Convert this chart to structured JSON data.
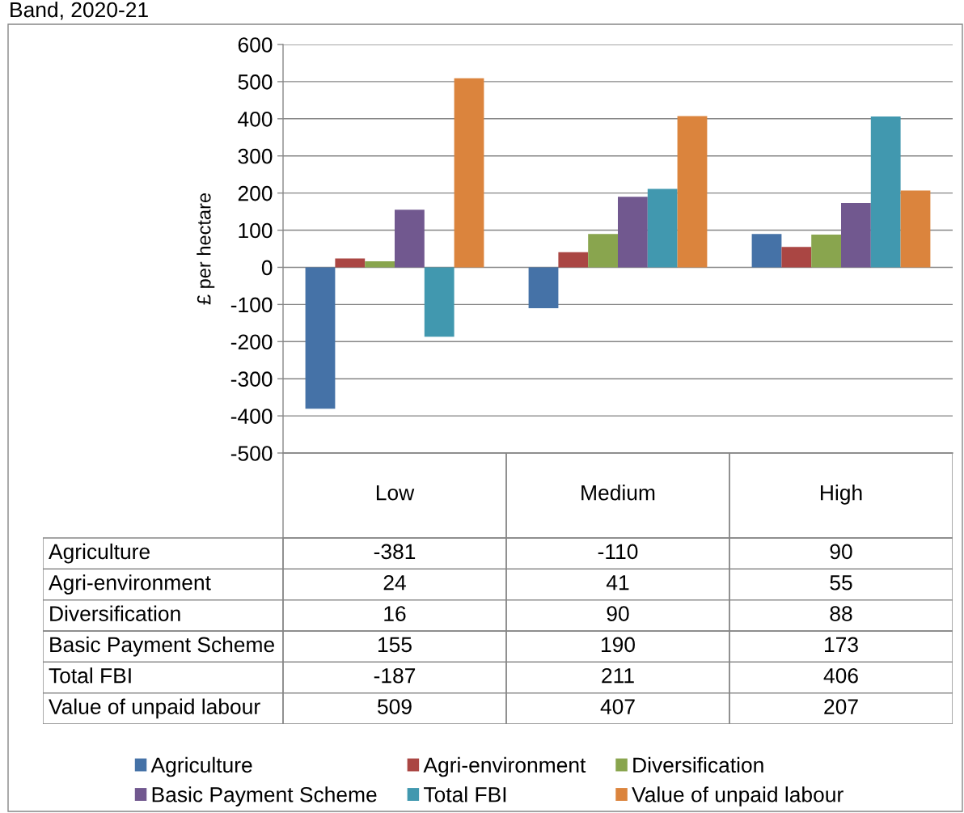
{
  "chart_data": {
    "type": "bar",
    "title": "Band, 2020-21",
    "ylabel": "£ per hectare",
    "categories": [
      "Low",
      "Medium",
      "High"
    ],
    "series": [
      {
        "name": "Agriculture",
        "color": "#4572a7",
        "values": [
          -381,
          -110,
          90
        ]
      },
      {
        "name": "Agri-environment",
        "color": "#aa4643",
        "values": [
          24,
          41,
          55
        ]
      },
      {
        "name": "Diversification",
        "color": "#89a54e",
        "values": [
          16,
          90,
          88
        ]
      },
      {
        "name": "Basic Payment Scheme",
        "color": "#71588f",
        "values": [
          155,
          190,
          173
        ]
      },
      {
        "name": "Total FBI",
        "color": "#4198af",
        "values": [
          -187,
          211,
          406
        ]
      },
      {
        "name": "Value of unpaid labour",
        "color": "#db843d",
        "values": [
          509,
          407,
          207
        ]
      }
    ],
    "ylim": [
      -500,
      600
    ],
    "yticks": [
      -500,
      -400,
      -300,
      -200,
      -100,
      0,
      100,
      200,
      300,
      400,
      500,
      600
    ],
    "grid": "y",
    "legend": "bottom",
    "data_labels": true
  }
}
